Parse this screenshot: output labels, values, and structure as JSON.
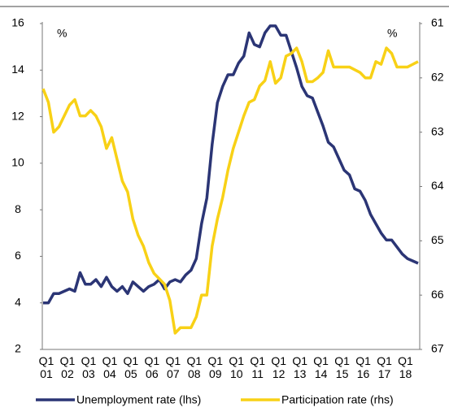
{
  "chart_data": {
    "type": "line",
    "categories": [
      "Q1 01",
      null,
      null,
      null,
      "Q1 02",
      null,
      null,
      null,
      "Q1 03",
      null,
      null,
      null,
      "Q1 04",
      null,
      null,
      null,
      "Q1 05",
      null,
      null,
      null,
      "Q1 06",
      null,
      null,
      null,
      "Q1 07",
      null,
      null,
      null,
      "Q1 08",
      null,
      null,
      null,
      "Q1 09",
      null,
      null,
      null,
      "Q1 10",
      null,
      null,
      null,
      "Q1 11",
      null,
      null,
      null,
      "Q1 12",
      null,
      null,
      null,
      "Q1 13",
      null,
      null,
      null,
      "Q1 14",
      null,
      null,
      null,
      "Q1 15",
      null,
      null,
      null,
      "Q1 16",
      null,
      null,
      null,
      "Q1 17",
      null,
      null,
      null,
      "Q1 18",
      null,
      null,
      null
    ],
    "ylim": [
      2,
      16
    ],
    "yticks": [
      2,
      4,
      6,
      8,
      10,
      12,
      14,
      16
    ],
    "y2lim": [
      67,
      61
    ],
    "y2ticks": [
      61,
      62,
      63,
      64,
      65,
      66,
      67
    ],
    "y_unit": "%",
    "y2_unit": "%",
    "series": [
      {
        "name": "Unemployment rate (lhs)",
        "color": "#2b3575",
        "values": [
          4.0,
          4.0,
          4.4,
          4.4,
          4.5,
          4.6,
          4.5,
          5.3,
          4.8,
          4.8,
          5.0,
          4.7,
          5.1,
          4.7,
          4.5,
          4.7,
          4.4,
          4.9,
          4.7,
          4.5,
          4.7,
          4.8,
          5.0,
          4.6,
          4.9,
          5.0,
          4.9,
          5.2,
          5.4,
          5.9,
          7.4,
          8.5,
          10.8,
          12.6,
          13.3,
          13.8,
          13.8,
          14.3,
          14.6,
          15.6,
          15.1,
          15.0,
          15.6,
          15.9,
          15.9,
          15.5,
          15.5,
          14.8,
          14.1,
          13.3,
          12.9,
          12.8,
          12.2,
          11.6,
          10.9,
          10.7,
          10.2,
          9.7,
          9.5,
          8.9,
          8.8,
          8.4,
          7.8,
          7.4,
          7.0,
          6.7,
          6.7,
          6.4,
          6.1,
          5.9,
          5.8,
          5.7
        ]
      },
      {
        "name": "Participation rate (rhs)",
        "color": "#f8d116",
        "axis": "y2",
        "values": [
          62.2,
          62.45,
          63.0,
          62.9,
          62.7,
          62.5,
          62.4,
          62.7,
          62.7,
          62.6,
          62.7,
          62.9,
          63.3,
          63.1,
          63.5,
          63.9,
          64.1,
          64.6,
          64.9,
          65.1,
          65.4,
          65.6,
          65.7,
          65.8,
          66.1,
          66.7,
          66.6,
          66.6,
          66.6,
          66.4,
          66.0,
          66.0,
          65.1,
          64.6,
          64.2,
          63.7,
          63.3,
          63.0,
          62.7,
          62.45,
          62.4,
          62.15,
          62.05,
          61.7,
          62.1,
          62.0,
          61.6,
          61.55,
          61.45,
          61.7,
          62.07,
          62.07,
          62.0,
          61.9,
          61.5,
          61.8,
          61.8,
          61.8,
          61.8,
          61.85,
          61.9,
          62.0,
          62.0,
          61.7,
          61.75,
          61.45,
          61.55,
          61.8,
          61.8,
          61.8,
          61.75,
          61.7
        ]
      }
    ]
  }
}
